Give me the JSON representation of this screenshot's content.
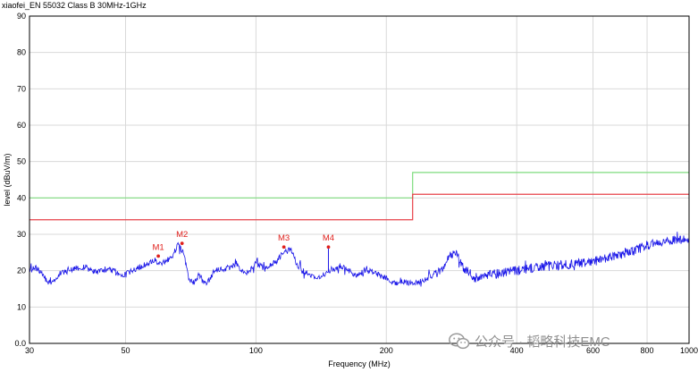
{
  "chart_data": {
    "type": "line",
    "title": "xiaofei_EN 55032 Class B 30MHz-1GHz",
    "xlabel": "Frequency (MHz)",
    "ylabel": "level (dBuV/m)",
    "xscale": "log",
    "xlim": [
      30,
      1000
    ],
    "ylim": [
      0,
      90
    ],
    "grid": true,
    "xticks": [
      30,
      50,
      100,
      200,
      400,
      600,
      800,
      1000
    ],
    "yticks": [
      0,
      10,
      20,
      30,
      40,
      50,
      60,
      70,
      80,
      90
    ],
    "ytick_labels": [
      "0.0",
      "10",
      "20",
      "30",
      "40",
      "50",
      "60",
      "70",
      "80",
      "90"
    ],
    "limit_lines": [
      {
        "color": "#7fdc7f",
        "points": [
          [
            30,
            40
          ],
          [
            230,
            40
          ],
          [
            230,
            47
          ],
          [
            1000,
            47
          ]
        ]
      },
      {
        "color": "#e8424a",
        "points": [
          [
            30,
            34
          ],
          [
            230,
            34
          ],
          [
            230,
            41
          ],
          [
            1000,
            41
          ]
        ]
      }
    ],
    "series": [
      {
        "color": "#1a16e8",
        "x": [
          30,
          31,
          32,
          33,
          34,
          35,
          37,
          40,
          43,
          46,
          49,
          52,
          55,
          58,
          60,
          62,
          64,
          66,
          68,
          70,
          72,
          74,
          76,
          78,
          80,
          85,
          90,
          95,
          100,
          105,
          110,
          115,
          120,
          125,
          130,
          140,
          150,
          160,
          170,
          180,
          190,
          200,
          210,
          220,
          230,
          240,
          250,
          260,
          270,
          280,
          290,
          300,
          320,
          350,
          400,
          450,
          500,
          550,
          600,
          650,
          700,
          750,
          800,
          850,
          900,
          950,
          1000
        ],
        "y": [
          20,
          21,
          19.5,
          17,
          16.5,
          19,
          20,
          21,
          19.5,
          20.5,
          18.5,
          20,
          21.5,
          23,
          22,
          22.5,
          24,
          27,
          25,
          18,
          16.5,
          19,
          16,
          17.5,
          20,
          20.5,
          21.5,
          19,
          22,
          20.5,
          22,
          24.5,
          26,
          21,
          19.5,
          18,
          20.5,
          21,
          18.5,
          20.5,
          19,
          18,
          16.5,
          17,
          16.5,
          17,
          18,
          19,
          20,
          24,
          25,
          21,
          18,
          19,
          20,
          21,
          21.5,
          22,
          22.5,
          23.5,
          24.5,
          25.5,
          27,
          27.5,
          28.5,
          28.5,
          29
        ]
      }
    ],
    "markers": [
      {
        "label": "M1",
        "x": 59.5,
        "y": 24
      },
      {
        "label": "M2",
        "x": 67.5,
        "y": 27.5
      },
      {
        "label": "M3",
        "x": 116,
        "y": 26.5
      },
      {
        "label": "M4",
        "x": 147,
        "y": 26.5
      }
    ]
  },
  "watermark": {
    "text": "公众号 · 韬略科技EMC",
    "icon": "wechat-icon"
  }
}
